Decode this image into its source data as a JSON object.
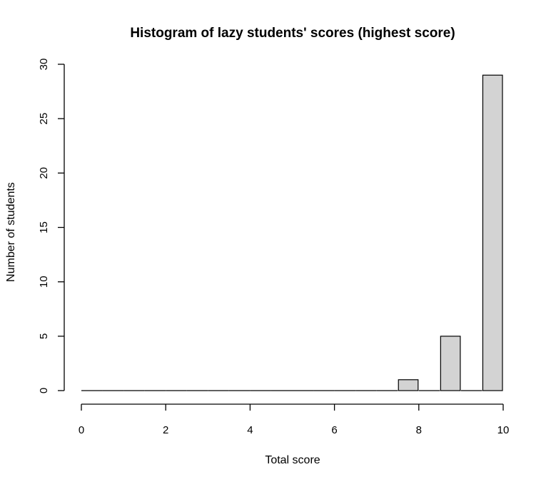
{
  "chart_data": {
    "type": "bar",
    "title": "Histogram of lazy students' scores (highest score)",
    "xlabel": "Total score",
    "ylabel": "Number of students",
    "xlim": [
      0,
      10
    ],
    "ylim": [
      0,
      30
    ],
    "x_ticks": [
      0,
      2,
      4,
      6,
      8,
      10
    ],
    "y_ticks": [
      0,
      5,
      10,
      15,
      20,
      25,
      30
    ],
    "bins": [
      {
        "from": 0.0,
        "to": 0.5,
        "count": 0
      },
      {
        "from": 0.5,
        "to": 1.0,
        "count": 0
      },
      {
        "from": 1.0,
        "to": 1.5,
        "count": 0
      },
      {
        "from": 1.5,
        "to": 2.0,
        "count": 0
      },
      {
        "from": 2.0,
        "to": 2.5,
        "count": 0
      },
      {
        "from": 2.5,
        "to": 3.0,
        "count": 0
      },
      {
        "from": 3.0,
        "to": 3.5,
        "count": 0
      },
      {
        "from": 3.5,
        "to": 4.0,
        "count": 0
      },
      {
        "from": 4.0,
        "to": 4.5,
        "count": 0
      },
      {
        "from": 4.5,
        "to": 5.0,
        "count": 0
      },
      {
        "from": 5.0,
        "to": 5.5,
        "count": 0
      },
      {
        "from": 5.5,
        "to": 6.0,
        "count": 0
      },
      {
        "from": 6.0,
        "to": 6.5,
        "count": 0
      },
      {
        "from": 6.5,
        "to": 7.0,
        "count": 0
      },
      {
        "from": 7.0,
        "to": 7.5,
        "count": 0
      },
      {
        "from": 7.5,
        "to": 8.0,
        "count": 1
      },
      {
        "from": 8.0,
        "to": 8.5,
        "count": 0
      },
      {
        "from": 8.5,
        "to": 9.0,
        "count": 5
      },
      {
        "from": 9.0,
        "to": 9.5,
        "count": 0
      },
      {
        "from": 9.5,
        "to": 10.0,
        "count": 29
      }
    ],
    "bar_color": "#d3d3d3",
    "grid": false,
    "legend": "none"
  }
}
